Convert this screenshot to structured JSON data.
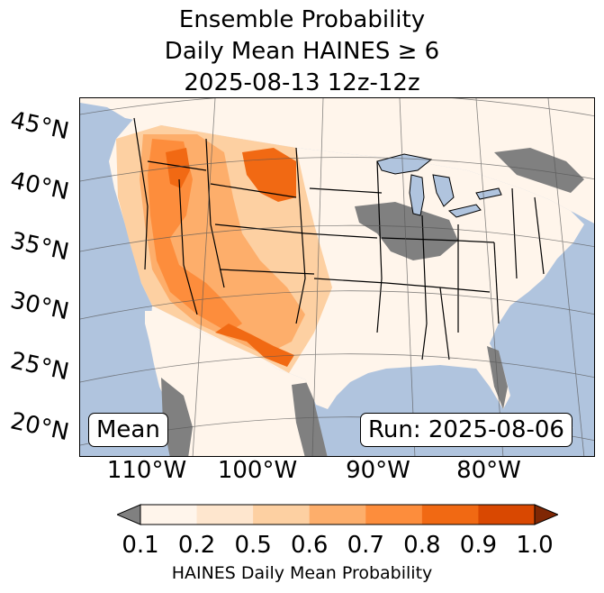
{
  "title": {
    "line1": "Ensemble Probability",
    "line2": "Daily Mean HAINES ≥ 6",
    "line3": "2025-08-13 12z-12z"
  },
  "map": {
    "latitude_labels": [
      "45°N",
      "40°N",
      "35°N",
      "30°N",
      "25°N",
      "20°N"
    ],
    "longitude_labels": [
      "110°W",
      "100°W",
      "90°W",
      "80°W"
    ],
    "annotation_left": "Mean",
    "annotation_right": "Run: 2025-08-06",
    "colors": {
      "ocean": "#b0c4de",
      "land": "#ffffff",
      "missing": "#808080",
      "lakes": "#b0c4de"
    }
  },
  "colorbar": {
    "tick_labels": [
      "0.1",
      "0.2",
      "0.5",
      "0.6",
      "0.7",
      "0.8",
      "0.9",
      "1.0"
    ],
    "label": "HAINES Daily Mean Probability",
    "under_color": "#808080",
    "over_color": "#7f2704",
    "colors": [
      "#fff5eb",
      "#fee6ce",
      "#fdd0a2",
      "#fdae6b",
      "#fd8d3c",
      "#f16913",
      "#d94801"
    ]
  }
}
